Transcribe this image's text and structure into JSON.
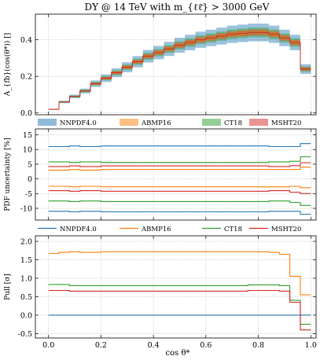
{
  "figure_title": "DY @ 14 TeV with m_{ℓℓ̄} > 3000 GeV",
  "xlabel": "cos θ*",
  "xlim": [
    -0.05,
    1.02
  ],
  "colors": {
    "NNPDF4.0": "#1f77b4",
    "ABMP16": "#ff7f0e",
    "CT18": "#2ca02c",
    "MSHT20": "#d62728"
  },
  "chart_data": [
    {
      "type": "area",
      "panel": "top",
      "ylabel": "A_{fb}(cos(θ*)) []",
      "ylim": [
        -0.01,
        0.54
      ],
      "yticks": [
        "0.0",
        "0.2",
        "0.4"
      ],
      "yticks_values": [
        0,
        0.2,
        0.4
      ],
      "xticks_values": [
        0,
        0.2,
        0.4,
        0.6,
        0.8,
        1.0
      ],
      "xticks": [
        "0.0",
        "0.2",
        "0.4",
        "0.6",
        "0.8",
        "1.0"
      ],
      "show_xticklabels": false,
      "grid": true,
      "legend_position": "bottom-spanning",
      "bin_edges": [
        0.0,
        0.04,
        0.08,
        0.12,
        0.16,
        0.2,
        0.24,
        0.28,
        0.32,
        0.36,
        0.4,
        0.44,
        0.48,
        0.52,
        0.56,
        0.6,
        0.64,
        0.68,
        0.72,
        0.76,
        0.8,
        0.84,
        0.88,
        0.92,
        0.96,
        1.0
      ],
      "central": [
        0.02,
        0.06,
        0.09,
        0.12,
        0.16,
        0.19,
        0.22,
        0.25,
        0.28,
        0.31,
        0.33,
        0.35,
        0.37,
        0.385,
        0.4,
        0.41,
        0.42,
        0.43,
        0.435,
        0.44,
        0.44,
        0.43,
        0.41,
        0.385,
        0.24
      ],
      "series": [
        {
          "name": "NNPDF4.0",
          "rel_err": 0.11
        },
        {
          "name": "ABMP16",
          "rel_err": 0.034
        },
        {
          "name": "CT18",
          "rel_err": 0.06
        },
        {
          "name": "MSHT20",
          "rel_err": 0.036
        }
      ]
    },
    {
      "type": "line",
      "panel": "middle",
      "ylabel": "PDF uncertainty [%]",
      "ylim": [
        -14,
        17
      ],
      "yticks": [
        "-10",
        "-5",
        "0",
        "5",
        "10",
        "15"
      ],
      "yticks_values": [
        -10,
        -5,
        0,
        5,
        10,
        15
      ],
      "show_xticklabels": false,
      "grid": true,
      "legend_position": "bottom-spanning",
      "series": [
        {
          "name": "NNPDF4.0",
          "upper": [
            11.0,
            11.0,
            11.2,
            11.0,
            11.0,
            11.2,
            11.2,
            11.2,
            11.2,
            11.2,
            11.2,
            11.2,
            11.2,
            11.2,
            11.2,
            11.2,
            11.2,
            11.2,
            11.2,
            11.2,
            11.2,
            11.0,
            11.0,
            11.0,
            12.0
          ],
          "lower": [
            -11.0,
            -11.0,
            -11.2,
            -11.0,
            -11.0,
            -11.2,
            -11.2,
            -11.2,
            -11.2,
            -11.2,
            -11.2,
            -11.2,
            -11.2,
            -11.2,
            -11.2,
            -11.2,
            -11.2,
            -11.2,
            -11.2,
            -11.2,
            -11.2,
            -11.0,
            -11.0,
            -11.0,
            -12.0
          ]
        },
        {
          "name": "ABMP16",
          "upper": [
            3.0,
            3.0,
            3.2,
            3.0,
            3.0,
            3.2,
            3.2,
            3.2,
            3.2,
            3.2,
            3.2,
            3.2,
            3.2,
            3.2,
            3.2,
            3.2,
            3.2,
            3.2,
            3.2,
            3.2,
            3.2,
            3.2,
            3.2,
            3.2,
            4.0
          ],
          "lower": [
            -2.5,
            -2.5,
            -2.7,
            -2.5,
            -2.5,
            -2.7,
            -2.7,
            -2.7,
            -2.7,
            -2.7,
            -2.7,
            -2.7,
            -2.7,
            -2.7,
            -2.7,
            -2.7,
            -2.7,
            -2.7,
            -2.7,
            -2.7,
            -2.7,
            -2.7,
            -2.7,
            -2.5,
            -3.0
          ]
        },
        {
          "name": "CT18",
          "upper": [
            5.8,
            5.8,
            5.6,
            5.8,
            5.8,
            5.6,
            5.6,
            5.6,
            5.6,
            5.6,
            5.6,
            5.6,
            5.6,
            5.6,
            5.6,
            5.6,
            5.6,
            5.6,
            5.6,
            5.6,
            5.6,
            5.8,
            5.8,
            6.0,
            7.5
          ],
          "lower": [
            -7.5,
            -7.5,
            -7.7,
            -7.5,
            -7.5,
            -7.7,
            -7.7,
            -7.7,
            -7.7,
            -7.7,
            -7.7,
            -7.7,
            -7.7,
            -7.7,
            -7.7,
            -7.7,
            -7.7,
            -7.7,
            -7.7,
            -7.7,
            -7.7,
            -7.5,
            -7.5,
            -8.0,
            -9.0
          ]
        },
        {
          "name": "MSHT20",
          "upper": [
            4.2,
            4.2,
            4.4,
            4.2,
            4.2,
            4.4,
            4.4,
            4.4,
            4.4,
            4.4,
            4.4,
            4.4,
            4.4,
            4.4,
            4.4,
            4.4,
            4.4,
            4.4,
            4.4,
            4.4,
            4.4,
            4.2,
            4.2,
            4.5,
            5.5
          ],
          "lower": [
            -4.0,
            -4.0,
            -4.2,
            -4.0,
            -4.0,
            -4.2,
            -4.2,
            -4.2,
            -4.2,
            -4.2,
            -4.2,
            -4.2,
            -4.2,
            -4.2,
            -4.2,
            -4.2,
            -4.2,
            -4.2,
            -4.2,
            -4.2,
            -4.2,
            -4.0,
            -4.0,
            -4.5,
            -5.0
          ]
        }
      ]
    },
    {
      "type": "line",
      "panel": "bottom",
      "ylabel": "Pull [σ]",
      "ylim": [
        -0.62,
        2.15
      ],
      "yticks": [
        "-0.5",
        "0.0",
        "0.5",
        "1.0",
        "1.5",
        "2.0"
      ],
      "yticks_values": [
        -0.5,
        0,
        0.5,
        1.0,
        1.5,
        2.0
      ],
      "xticks": [
        "0.0",
        "0.2",
        "0.4",
        "0.6",
        "0.8",
        "1.0"
      ],
      "xticks_values": [
        0,
        0.2,
        0.4,
        0.6,
        0.8,
        1.0
      ],
      "show_xticklabels": true,
      "grid": true,
      "series": [
        {
          "name": "NNPDF4.0",
          "values": [
            0,
            0,
            0,
            0,
            0,
            0,
            0,
            0,
            0,
            0,
            0,
            0,
            0,
            0,
            0,
            0,
            0,
            0,
            0,
            0,
            0,
            0,
            0,
            0,
            0
          ]
        },
        {
          "name": "ABMP16",
          "values": [
            1.67,
            1.7,
            1.72,
            1.7,
            1.7,
            1.72,
            1.72,
            1.72,
            1.72,
            1.72,
            1.72,
            1.72,
            1.72,
            1.72,
            1.72,
            1.72,
            1.72,
            1.72,
            1.72,
            1.72,
            1.72,
            1.7,
            1.65,
            1.05,
            0.55
          ]
        },
        {
          "name": "CT18",
          "values": [
            0.83,
            0.83,
            0.8,
            0.8,
            0.8,
            0.8,
            0.8,
            0.8,
            0.8,
            0.8,
            0.8,
            0.8,
            0.8,
            0.8,
            0.8,
            0.8,
            0.8,
            0.8,
            0.8,
            0.82,
            0.82,
            0.82,
            0.8,
            0.4,
            -0.25
          ]
        },
        {
          "name": "MSHT20",
          "values": [
            0.67,
            0.67,
            0.65,
            0.65,
            0.65,
            0.65,
            0.65,
            0.65,
            0.65,
            0.65,
            0.65,
            0.65,
            0.65,
            0.65,
            0.65,
            0.65,
            0.65,
            0.65,
            0.65,
            0.67,
            0.67,
            0.67,
            0.65,
            0.35,
            -0.4
          ]
        }
      ]
    }
  ]
}
